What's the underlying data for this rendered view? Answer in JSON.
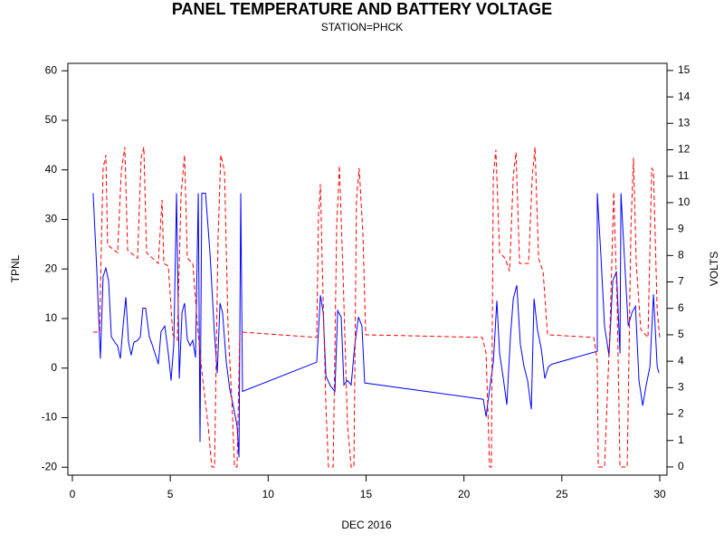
{
  "chart_data": {
    "type": "line",
    "title": "PANEL TEMPERATURE AND BATTERY VOLTAGE",
    "subtitle": "STATION=PHCK",
    "x_label": "DEC 2016",
    "y_label": "TPNL",
    "y2_label": "VOLTS",
    "xlim": [
      -0.23,
      30.37
    ],
    "xticks": [
      0,
      5,
      10,
      15,
      20,
      25,
      30
    ],
    "ylim": [
      -21.6,
      61.5
    ],
    "yticks": [
      -20,
      -10,
      0,
      10,
      20,
      30,
      40,
      50,
      60
    ],
    "y2lim": [
      -0.31,
      15.27
    ],
    "y2ticks": [
      0,
      1,
      2,
      3,
      4,
      5,
      6,
      7,
      8,
      9,
      10,
      11,
      12,
      13,
      14,
      15
    ],
    "grid": false,
    "series": [
      {
        "name": "TPNL",
        "color": "#0000ff",
        "dash": false,
        "axis": "y",
        "x": [
          1.06,
          1.25,
          1.43,
          1.57,
          1.71,
          1.85,
          1.99,
          2.17,
          2.31,
          2.45,
          2.59,
          2.73,
          2.87,
          3.0,
          3.14,
          3.33,
          3.47,
          3.6,
          3.74,
          3.93,
          4.07,
          4.25,
          4.39,
          4.53,
          4.72,
          4.9,
          5.04,
          5.18,
          5.32,
          5.46,
          5.6,
          5.73,
          5.87,
          6.01,
          6.15,
          6.29,
          6.43,
          6.52,
          6.61,
          6.8,
          7.03,
          7.26,
          7.4,
          7.54,
          7.67,
          7.86,
          8.04,
          8.23,
          8.41,
          8.51,
          8.6,
          8.69,
          12.48,
          12.67,
          12.81,
          12.95,
          13.18,
          13.41,
          13.55,
          13.73,
          13.87,
          14.05,
          14.24,
          14.42,
          14.61,
          14.79,
          14.93,
          20.99,
          21.13,
          21.31,
          21.5,
          21.68,
          21.82,
          22.01,
          22.19,
          22.38,
          22.52,
          22.7,
          22.88,
          23.07,
          23.25,
          23.44,
          23.58,
          23.76,
          23.95,
          24.13,
          24.32,
          24.5,
          26.81,
          26.81,
          26.99,
          27.18,
          27.41,
          27.6,
          27.79,
          27.97,
          28.02,
          28.21,
          28.39,
          28.58,
          28.76,
          28.94,
          29.13,
          29.31,
          29.5,
          29.68,
          29.87,
          29.96
        ],
        "values": [
          35.3,
          19.5,
          1.9,
          18.5,
          20.2,
          17.6,
          6.3,
          5.2,
          4.5,
          1.9,
          8.5,
          14.3,
          5.2,
          2.6,
          5.2,
          5.6,
          6.3,
          12.1,
          12.1,
          6.3,
          4.8,
          2.6,
          0.8,
          7.4,
          8.5,
          3.0,
          -2.5,
          4.8,
          35.3,
          -2.1,
          11.2,
          13.1,
          5.8,
          4.5,
          5.6,
          2.1,
          35.3,
          -14.9,
          35.3,
          35.3,
          23.1,
          6.7,
          -1.0,
          13.1,
          11.2,
          1.2,
          -4.3,
          -7.9,
          -11.6,
          -18.0,
          35.3,
          -4.7,
          1.2,
          14.7,
          11.2,
          -1.6,
          -3.6,
          -4.7,
          11.6,
          10.3,
          -3.4,
          -2.5,
          -3.4,
          4.5,
          10.3,
          8.5,
          -3.0,
          -6.3,
          -9.8,
          -4.3,
          1.2,
          13.6,
          3.0,
          -2.1,
          -7.4,
          6.7,
          14.0,
          16.7,
          4.8,
          0.3,
          -2.5,
          -8.3,
          14.0,
          7.6,
          3.9,
          -2.1,
          0.3,
          0.8,
          3.4,
          35.3,
          23.1,
          8.5,
          2.5,
          17.6,
          19.5,
          3.0,
          35.3,
          21.3,
          8.5,
          11.2,
          12.5,
          -2.5,
          -7.6,
          -3.4,
          0.3,
          14.9,
          0.3,
          -1.0
        ]
      },
      {
        "name": "VOLTS",
        "color": "#ff0000",
        "dash": true,
        "axis": "y2",
        "x": [
          1.06,
          1.39,
          1.48,
          1.57,
          1.71,
          1.8,
          2.31,
          2.5,
          2.68,
          2.82,
          3.33,
          3.51,
          3.65,
          3.79,
          4.39,
          4.58,
          4.67,
          4.9,
          5.13,
          5.36,
          5.55,
          5.73,
          5.87,
          6.15,
          6.43,
          6.66,
          6.93,
          7.12,
          7.26,
          7.44,
          7.58,
          7.77,
          7.95,
          8.14,
          8.28,
          8.41,
          8.55,
          8.69,
          12.48,
          12.57,
          12.67,
          12.76,
          12.95,
          13.08,
          13.32,
          13.5,
          13.64,
          13.82,
          14.05,
          14.24,
          14.38,
          14.51,
          14.65,
          14.84,
          14.98,
          20.94,
          21.13,
          21.31,
          21.4,
          21.5,
          21.63,
          21.82,
          22.1,
          22.33,
          22.52,
          22.66,
          22.84,
          23.3,
          23.49,
          23.63,
          23.81,
          24.04,
          24.27,
          26.63,
          26.81,
          26.86,
          27.18,
          27.46,
          27.65,
          27.83,
          27.97,
          28.34,
          28.53,
          28.66,
          28.8,
          29.03,
          29.4,
          29.59,
          29.68,
          29.87,
          30.0
        ],
        "values": [
          5.1,
          5.1,
          8.4,
          11.3,
          11.8,
          8.4,
          8.1,
          11.2,
          12.1,
          8.2,
          7.9,
          11.7,
          12.1,
          8.1,
          7.7,
          10.1,
          7.7,
          7.6,
          5.0,
          4.8,
          10.3,
          11.8,
          7.9,
          7.7,
          5.0,
          3.3,
          1.6,
          0.0,
          0.0,
          8.6,
          11.8,
          11.2,
          5.3,
          2.6,
          0.0,
          0.0,
          5.0,
          5.1,
          4.9,
          9.5,
          10.7,
          7.7,
          2.3,
          0.0,
          0.0,
          9.1,
          11.4,
          7.4,
          1.6,
          0.0,
          0.0,
          10.1,
          11.3,
          8.8,
          5.0,
          4.9,
          4.3,
          0.0,
          0.0,
          11.0,
          12.0,
          8.1,
          7.9,
          7.4,
          11.0,
          11.9,
          7.7,
          7.7,
          11.0,
          12.1,
          7.9,
          7.4,
          5.0,
          4.9,
          4.0,
          0.0,
          0.0,
          5.3,
          10.4,
          6.0,
          0.0,
          0.0,
          9.1,
          11.7,
          7.7,
          5.2,
          4.9,
          11.3,
          11.2,
          5.9,
          4.9
        ]
      }
    ]
  }
}
